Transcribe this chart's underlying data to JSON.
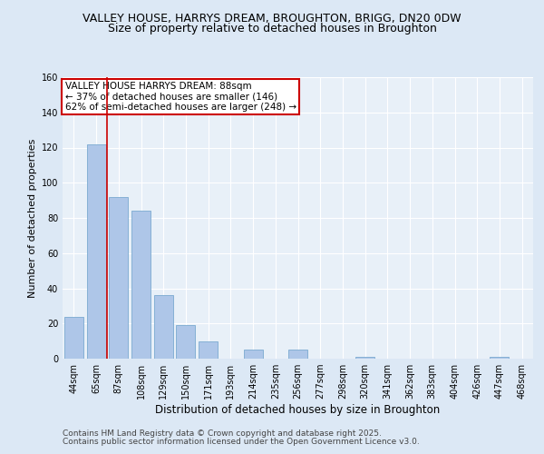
{
  "title1": "VALLEY HOUSE, HARRYS DREAM, BROUGHTON, BRIGG, DN20 0DW",
  "title2": "Size of property relative to detached houses in Broughton",
  "xlabel": "Distribution of detached houses by size in Broughton",
  "ylabel": "Number of detached properties",
  "categories": [
    "44sqm",
    "65sqm",
    "87sqm",
    "108sqm",
    "129sqm",
    "150sqm",
    "171sqm",
    "193sqm",
    "214sqm",
    "235sqm",
    "256sqm",
    "277sqm",
    "298sqm",
    "320sqm",
    "341sqm",
    "362sqm",
    "383sqm",
    "404sqm",
    "426sqm",
    "447sqm",
    "468sqm"
  ],
  "values": [
    24,
    122,
    92,
    84,
    36,
    19,
    10,
    0,
    5,
    0,
    5,
    0,
    0,
    1,
    0,
    0,
    0,
    0,
    0,
    1,
    0
  ],
  "bar_color": "#aec6e8",
  "bar_edge_color": "#7aaad0",
  "vline_color": "#cc0000",
  "annotation_text": "VALLEY HOUSE HARRYS DREAM: 88sqm\n← 37% of detached houses are smaller (146)\n62% of semi-detached houses are larger (248) →",
  "annotation_box_color": "#ffffff",
  "annotation_box_edge": "#cc0000",
  "ylim": [
    0,
    160
  ],
  "yticks": [
    0,
    20,
    40,
    60,
    80,
    100,
    120,
    140,
    160
  ],
  "bg_color": "#dce8f5",
  "plot_bg_color": "#e8f0f8",
  "footer1": "Contains HM Land Registry data © Crown copyright and database right 2025.",
  "footer2": "Contains public sector information licensed under the Open Government Licence v3.0.",
  "title1_fontsize": 9,
  "title2_fontsize": 9,
  "xlabel_fontsize": 8.5,
  "ylabel_fontsize": 8,
  "tick_fontsize": 7,
  "footer_fontsize": 6.5,
  "annotation_fontsize": 7.5,
  "vline_pos": 1.5
}
